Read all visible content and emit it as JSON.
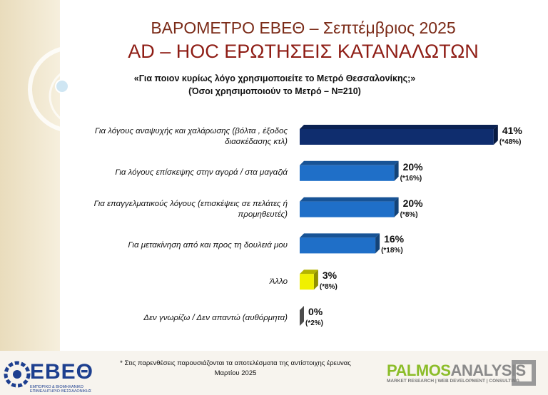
{
  "chart_data": {
    "type": "bar",
    "orientation": "horizontal",
    "title": "ΒΑΡΟΜΕΤΡΟ ΕΒΕΘ – Σεπτέμβριος 2025",
    "subtitle": "AD – HOC ΕΡΩΤΗΣΕΙΣ ΚΑΤΑΝΑΛΩΤΩΝ",
    "question": "«Για ποιον κυρίως λόγο χρησιμοποιείτε το Μετρό Θεσσαλονίκης;»",
    "base": "(Όσοι χρησιμοποιούν το Μετρό – Ν=210)",
    "categories": [
      "Για λόγους αναψυχής και χαλάρωσης (βόλτα , έξοδος διασκέδασης κτλ)",
      "Για λόγους επίσκεψης στην αγορά / στα μαγαζιά",
      "Για επαγγελματικούς λόγους (επισκέψεις σε πελάτες ή προμηθευτές)",
      "Για μετακίνηση από και προς τη δουλειά μου",
      "Άλλο",
      "Δεν γνωρίζω / Δεν απαντώ (αυθόρμητα)"
    ],
    "values": [
      41,
      20,
      20,
      16,
      3,
      0
    ],
    "value_labels": [
      "41%",
      "20%",
      "20%",
      "16%",
      "3%",
      "0%"
    ],
    "previous_values": [
      48,
      16,
      8,
      18,
      8,
      2
    ],
    "previous_value_labels": [
      "(*48%)",
      "(*16%)",
      "(*8%)",
      "(*18%)",
      "(*8%)",
      "(*2%)"
    ],
    "colors": [
      "#0f2d6e",
      "#1f6fc8",
      "#1f6fc8",
      "#1f6fc8",
      "#f0f000",
      "#7f7f7f"
    ],
    "footnote": "* Στις παρενθέσεις παρουσιάζονται τα αποτελέσματα της αντίστοιχης έρευνας Μαρτίου 2025"
  },
  "logos": {
    "left": {
      "name": "ΕΒΕΘ",
      "caption": "ΕΜΠΟΡΙΚΟ & ΒΙΟΜΗΧΑΝΙΚΟ ΕΠΙΜΕΛΗΤΗΡΙΟ ΘΕΣΣΑΛΟΝΙΚΗΣ"
    },
    "right": {
      "name_a": "PALMOS",
      "name_b": "ANALYSIS",
      "caption": "MARKET RESEARCH | WEB DEVELOPMENT | CONSULTING"
    }
  }
}
